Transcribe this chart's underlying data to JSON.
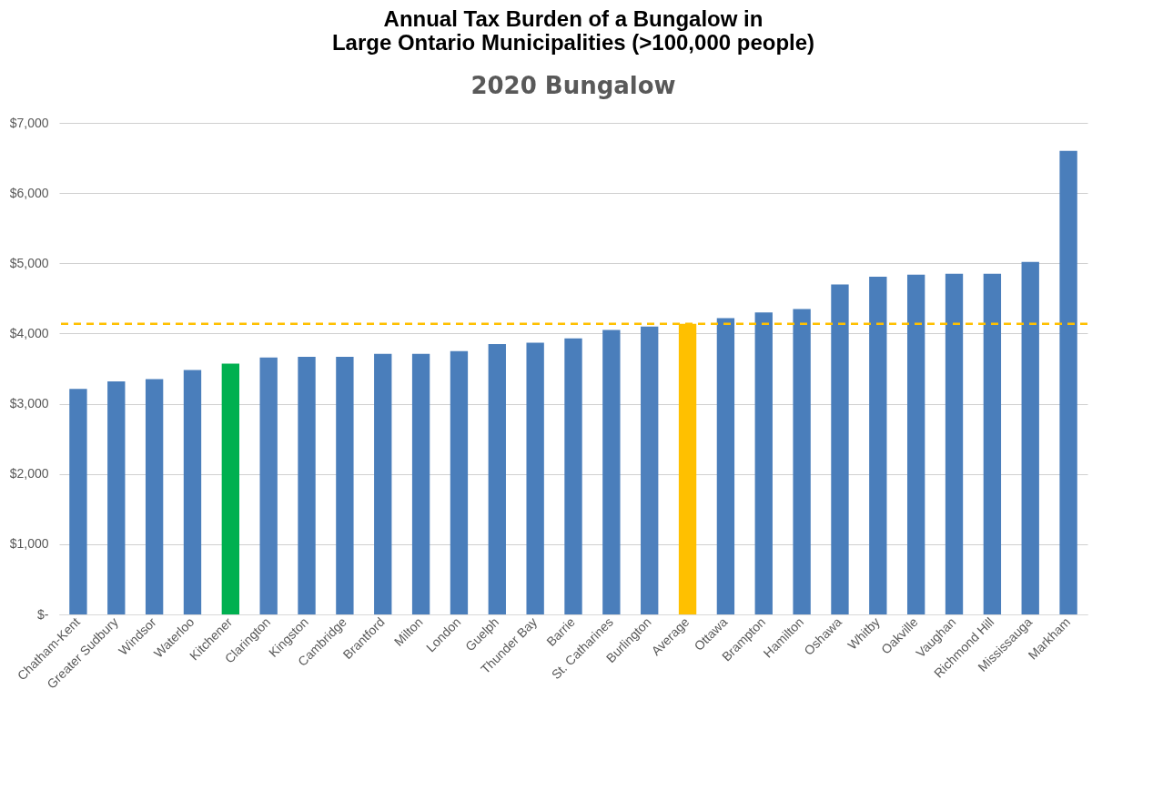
{
  "chart_data": {
    "type": "bar",
    "title": "Annual Tax Burden of a Bungalow in\nLarge Ontario Municipalities (>100,000 people)",
    "subtitle": "2020 Bungalow",
    "categories": [
      "Chatham-Kent",
      "Greater Sudbury",
      "Windsor",
      "Waterloo",
      "Kitchener",
      "Clarington",
      "Kingston",
      "Cambridge",
      "Brantford",
      "Milton",
      "London",
      "Guelph",
      "Thunder Bay",
      "Barrie",
      "St. Catharines",
      "Burlington",
      "Average",
      "Ottawa",
      "Brampton",
      "Hamilton",
      "Oshawa",
      "Whitby",
      "Oakville",
      "Vaughan",
      "Richmond Hill",
      "Mississauga",
      "Markham"
    ],
    "values": [
      3210,
      3320,
      3350,
      3480,
      3570,
      3660,
      3670,
      3670,
      3710,
      3710,
      3750,
      3850,
      3870,
      3930,
      4050,
      4100,
      4140,
      4220,
      4300,
      4350,
      4700,
      4810,
      4840,
      4850,
      4850,
      5020,
      6600
    ],
    "colors": [
      "#4a7ebb",
      "#4a7ebb",
      "#4a7ebb",
      "#4a7ebb",
      "#00b050",
      "#4f81bd",
      "#4a7ebb",
      "#4a7ebb",
      "#4a7ebb",
      "#4a7ebb",
      "#4a7ebb",
      "#4a7ebb",
      "#4a7ebb",
      "#4a7ebb",
      "#4a7ebb",
      "#4f81bd",
      "#ffc000",
      "#4a7ebb",
      "#4a7ebb",
      "#4a7ebb",
      "#4a7ebb",
      "#4a7ebb",
      "#4a7ebb",
      "#4a7ebb",
      "#4a7ebb",
      "#4a7ebb",
      "#4a7ebb"
    ],
    "ylim": [
      0,
      7000
    ],
    "yticks": [
      {
        "value": 0,
        "label": "$-"
      },
      {
        "value": 1000,
        "label": "$1,000"
      },
      {
        "value": 2000,
        "label": "$2,000"
      },
      {
        "value": 3000,
        "label": "$3,000"
      },
      {
        "value": 4000,
        "label": "$4,000"
      },
      {
        "value": 5000,
        "label": "$5,000"
      },
      {
        "value": 6000,
        "label": "$6,000"
      },
      {
        "value": 7000,
        "label": "$7,000"
      }
    ],
    "grid": "y",
    "ref_lines": [
      {
        "axis": "y",
        "value": 4140,
        "color": "#ffc000",
        "line_style": "dashed"
      }
    ]
  }
}
